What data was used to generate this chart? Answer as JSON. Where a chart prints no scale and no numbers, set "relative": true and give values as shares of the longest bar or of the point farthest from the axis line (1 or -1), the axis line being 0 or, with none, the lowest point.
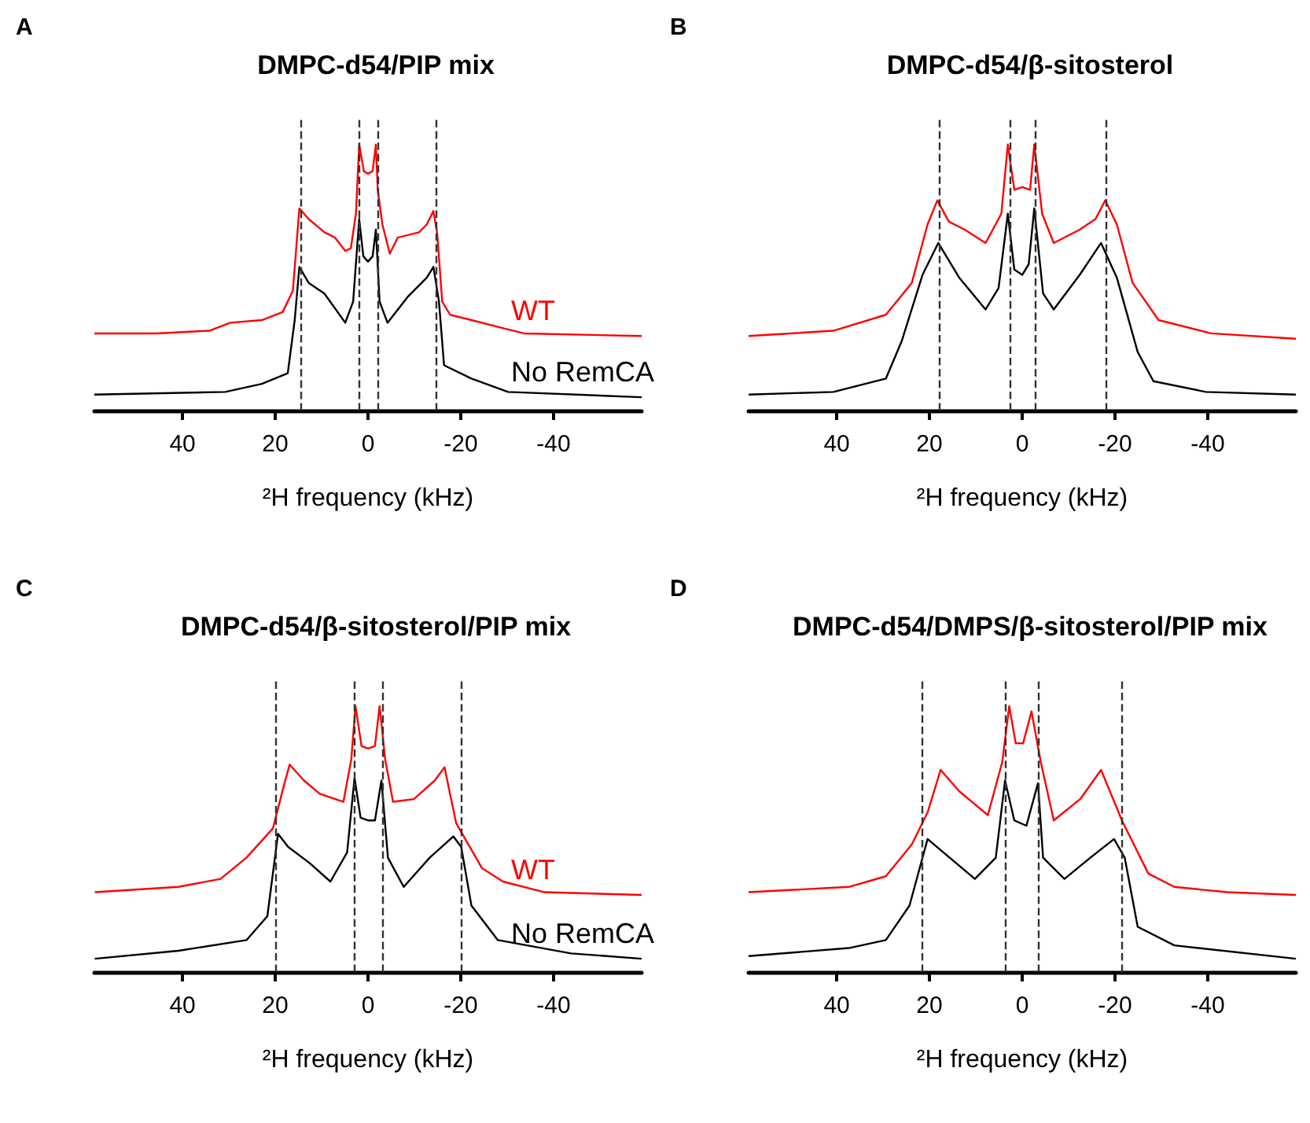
{
  "chart_data": [
    {
      "type": "line",
      "title": "DMPC-d54/PIP mix",
      "xlabel": "²H frequency (kHz)",
      "annotations": [
        "A"
      ],
      "relative": true,
      "xlim": [
        59,
        -59
      ],
      "xticks": [
        40,
        20,
        0,
        -20,
        -40
      ],
      "ref_lines": [
        {
          "axis": "x",
          "value": 14.5,
          "line_style": "dashed"
        },
        {
          "axis": "x",
          "value": 2,
          "line_style": "dashed"
        },
        {
          "axis": "x",
          "value": -2,
          "line_style": "dashed"
        },
        {
          "axis": "x",
          "value": -14.5,
          "line_style": "dashed"
        }
      ],
      "series": [
        {
          "name": "WT",
          "color": "#ff0000",
          "x": [
            59,
            45.5,
            34.2,
            29.7,
            22.9,
            18.4,
            16.2,
            14.8,
            12.8,
            9.4,
            7.1,
            4.9,
            3.7,
            2.6,
            1.9,
            0.9,
            0,
            -1,
            -1.7,
            -2.1,
            -3.1,
            -4.7,
            -6.4,
            -11,
            -12.7,
            -14.1,
            -14.9,
            -16,
            -17.7,
            -22.3,
            -29,
            -33.6,
            -59
          ],
          "values": [
            0.29,
            0.29,
            0.3,
            0.33,
            0.34,
            0.37,
            0.45,
            0.76,
            0.72,
            0.67,
            0.65,
            0.6,
            0.61,
            0.74,
            1,
            0.9,
            0.89,
            0.9,
            1,
            0.83,
            0.7,
            0.59,
            0.65,
            0.67,
            0.7,
            0.75,
            0.67,
            0.41,
            0.36,
            0.34,
            0.31,
            0.29,
            0.28
          ]
        },
        {
          "name": "No RemCA",
          "color": "#000000",
          "x": [
            59,
            30.8,
            22.9,
            17.3,
            15.8,
            14.8,
            12.8,
            9.4,
            4.9,
            3.2,
            1.9,
            1,
            0,
            -1,
            -1.7,
            -2.5,
            -4.2,
            -8.7,
            -12.7,
            -14.1,
            -15.3,
            -16.4,
            -22.3,
            -30.2,
            -59
          ],
          "values": [
            0.06,
            0.07,
            0.1,
            0.14,
            0.34,
            0.54,
            0.48,
            0.44,
            0.33,
            0.41,
            0.72,
            0.58,
            0.56,
            0.58,
            0.68,
            0.41,
            0.33,
            0.43,
            0.5,
            0.54,
            0.41,
            0.17,
            0.12,
            0.07,
            0.05
          ]
        }
      ]
    },
    {
      "type": "line",
      "title": "DMPC-d54/β-sitosterol",
      "xlabel": "²H frequency (kHz)",
      "annotations": [
        "B"
      ],
      "relative": true,
      "xlim": [
        59,
        -59
      ],
      "xticks": [
        40,
        20,
        0,
        -20,
        -40
      ],
      "ref_lines": [
        {
          "axis": "x",
          "value": 18,
          "line_style": "dashed"
        },
        {
          "axis": "x",
          "value": 2.7,
          "line_style": "dashed"
        },
        {
          "axis": "x",
          "value": -2.7,
          "line_style": "dashed"
        },
        {
          "axis": "x",
          "value": -18,
          "line_style": "dashed"
        }
      ],
      "series": [
        {
          "color": "#ff0000",
          "x": [
            59,
            40.7,
            29.4,
            23.8,
            20.4,
            18.3,
            15.8,
            12.4,
            7.9,
            4.5,
            3.1,
            1.7,
            0,
            -1.7,
            -2.6,
            -4.3,
            -6.8,
            -12.4,
            -15.8,
            -17.9,
            -20.4,
            -23.8,
            -29.4,
            -40.7,
            -59
          ],
          "values": [
            0.28,
            0.3,
            0.36,
            0.48,
            0.7,
            0.79,
            0.71,
            0.68,
            0.63,
            0.74,
            1,
            0.83,
            0.84,
            0.83,
            1,
            0.74,
            0.63,
            0.68,
            0.72,
            0.79,
            0.7,
            0.48,
            0.34,
            0.29,
            0.27
          ]
        },
        {
          "color": "#000000",
          "x": [
            59,
            40.7,
            29.4,
            26,
            21.5,
            18.1,
            13.6,
            7.9,
            5.1,
            3.1,
            1.7,
            0,
            -1.4,
            -2.6,
            -4.5,
            -6.8,
            -12.4,
            -17,
            -20.4,
            -24.9,
            -28.3,
            -39.6,
            -59
          ],
          "values": [
            0.06,
            0.07,
            0.12,
            0.26,
            0.51,
            0.63,
            0.5,
            0.38,
            0.46,
            0.74,
            0.53,
            0.51,
            0.55,
            0.76,
            0.44,
            0.38,
            0.51,
            0.63,
            0.5,
            0.22,
            0.11,
            0.07,
            0.06
          ]
        }
      ]
    },
    {
      "type": "line",
      "title": "DMPC-d54/β-sitosterol/PIP mix",
      "xlabel": "²H frequency (kHz)",
      "annotations": [
        "C"
      ],
      "relative": true,
      "xlim": [
        59,
        -59
      ],
      "xticks": [
        40,
        20,
        0,
        -20,
        -40
      ],
      "ref_lines": [
        {
          "axis": "x",
          "value": 20,
          "line_style": "dashed"
        },
        {
          "axis": "x",
          "value": 3,
          "line_style": "dashed"
        },
        {
          "axis": "x",
          "value": -3,
          "line_style": "dashed"
        },
        {
          "axis": "x",
          "value": -20,
          "line_style": "dashed"
        }
      ],
      "series": [
        {
          "name": "WT",
          "color": "#ff0000",
          "x": [
            58.9,
            40.9,
            31.8,
            26.2,
            20.5,
            18.3,
            16.9,
            13.8,
            10.4,
            5.3,
            3.6,
            2.7,
            1.4,
            0,
            -1.5,
            -2.5,
            -3.7,
            -5.4,
            -9.9,
            -14.4,
            -16.5,
            -19,
            -24.6,
            -29.1,
            -38.1,
            -59
          ],
          "values": [
            0.3,
            0.32,
            0.35,
            0.43,
            0.54,
            0.69,
            0.78,
            0.72,
            0.67,
            0.64,
            0.8,
            1,
            0.85,
            0.84,
            0.85,
            1,
            0.8,
            0.64,
            0.65,
            0.72,
            0.77,
            0.56,
            0.39,
            0.34,
            0.3,
            0.29
          ]
        },
        {
          "name": "No RemCA",
          "color": "#000000",
          "x": [
            58.9,
            40.9,
            26.2,
            21.7,
            19.4,
            17.2,
            12.6,
            8.1,
            4.5,
            2.9,
            1.6,
            0,
            -1.5,
            -2.9,
            -4.3,
            -7.7,
            -13.3,
            -18.4,
            -20.1,
            -22.3,
            -28,
            -43.8,
            -59
          ],
          "values": [
            0.05,
            0.08,
            0.12,
            0.21,
            0.52,
            0.47,
            0.41,
            0.34,
            0.45,
            0.73,
            0.58,
            0.57,
            0.57,
            0.72,
            0.43,
            0.32,
            0.43,
            0.51,
            0.47,
            0.25,
            0.12,
            0.07,
            0.05
          ]
        }
      ]
    },
    {
      "type": "line",
      "title": "DMPC-d54/DMPS/β-sitosterol/PIP mix",
      "xlabel": "²H frequency (kHz)",
      "annotations": [
        "D"
      ],
      "relative": true,
      "xlim": [
        59,
        -59
      ],
      "xticks": [
        40,
        20,
        0,
        -20,
        -40
      ],
      "ref_lines": [
        {
          "axis": "x",
          "value": 21.5,
          "line_style": "dashed"
        },
        {
          "axis": "x",
          "value": 3.5,
          "line_style": "dashed"
        },
        {
          "axis": "x",
          "value": -3.5,
          "line_style": "dashed"
        },
        {
          "axis": "x",
          "value": -21.5,
          "line_style": "dashed"
        }
      ],
      "series": [
        {
          "color": "#ff0000",
          "x": [
            59,
            37.4,
            29.4,
            23.8,
            20.4,
            17.6,
            13.6,
            7.4,
            4.3,
            2.8,
            1.4,
            -0.2,
            -2,
            -4,
            -6.8,
            -12.5,
            -17,
            -21.5,
            -27.2,
            -32.8,
            -44.2,
            -59
          ],
          "values": [
            0.3,
            0.32,
            0.36,
            0.48,
            0.6,
            0.76,
            0.68,
            0.59,
            0.79,
            1,
            0.86,
            0.86,
            0.98,
            0.79,
            0.57,
            0.65,
            0.76,
            0.57,
            0.37,
            0.32,
            0.3,
            0.29
          ]
        },
        {
          "color": "#000000",
          "x": [
            59,
            37.4,
            29.4,
            24.3,
            20.4,
            17,
            10.2,
            5.7,
            3.7,
            1.7,
            -0.9,
            -3.4,
            -4.5,
            -9.1,
            -14.7,
            -19.8,
            -22.1,
            -24.9,
            -32.8,
            -59
          ],
          "values": [
            0.06,
            0.09,
            0.12,
            0.25,
            0.5,
            0.45,
            0.35,
            0.43,
            0.72,
            0.57,
            0.55,
            0.71,
            0.43,
            0.35,
            0.43,
            0.5,
            0.43,
            0.17,
            0.1,
            0.05
          ]
        }
      ]
    }
  ]
}
